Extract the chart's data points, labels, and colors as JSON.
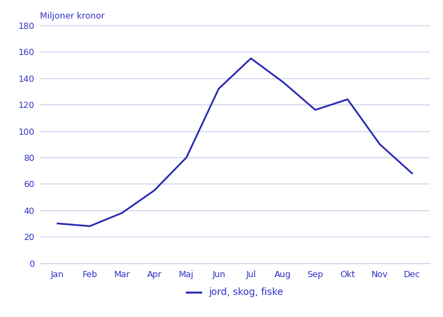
{
  "months": [
    "Jan",
    "Feb",
    "Mar",
    "Apr",
    "Maj",
    "Jun",
    "Jul",
    "Aug",
    "Sep",
    "Okt",
    "Nov",
    "Dec"
  ],
  "values": [
    30,
    28,
    38,
    55,
    80,
    132,
    155,
    137,
    116,
    124,
    90,
    68
  ],
  "line_color": "#2828b4",
  "ylabel": "Miljoner kronor",
  "legend_label": "jord, skog, fiske",
  "ylim": [
    0,
    180
  ],
  "yticks": [
    0,
    20,
    40,
    60,
    80,
    100,
    120,
    140,
    160,
    180
  ],
  "grid_color": "#c8c8e8",
  "background_color": "#ffffff",
  "text_color": "#3232c8",
  "line_color_dark": "#1a1a96",
  "line_width": 1.8,
  "tick_fontsize": 9,
  "ylabel_fontsize": 9
}
